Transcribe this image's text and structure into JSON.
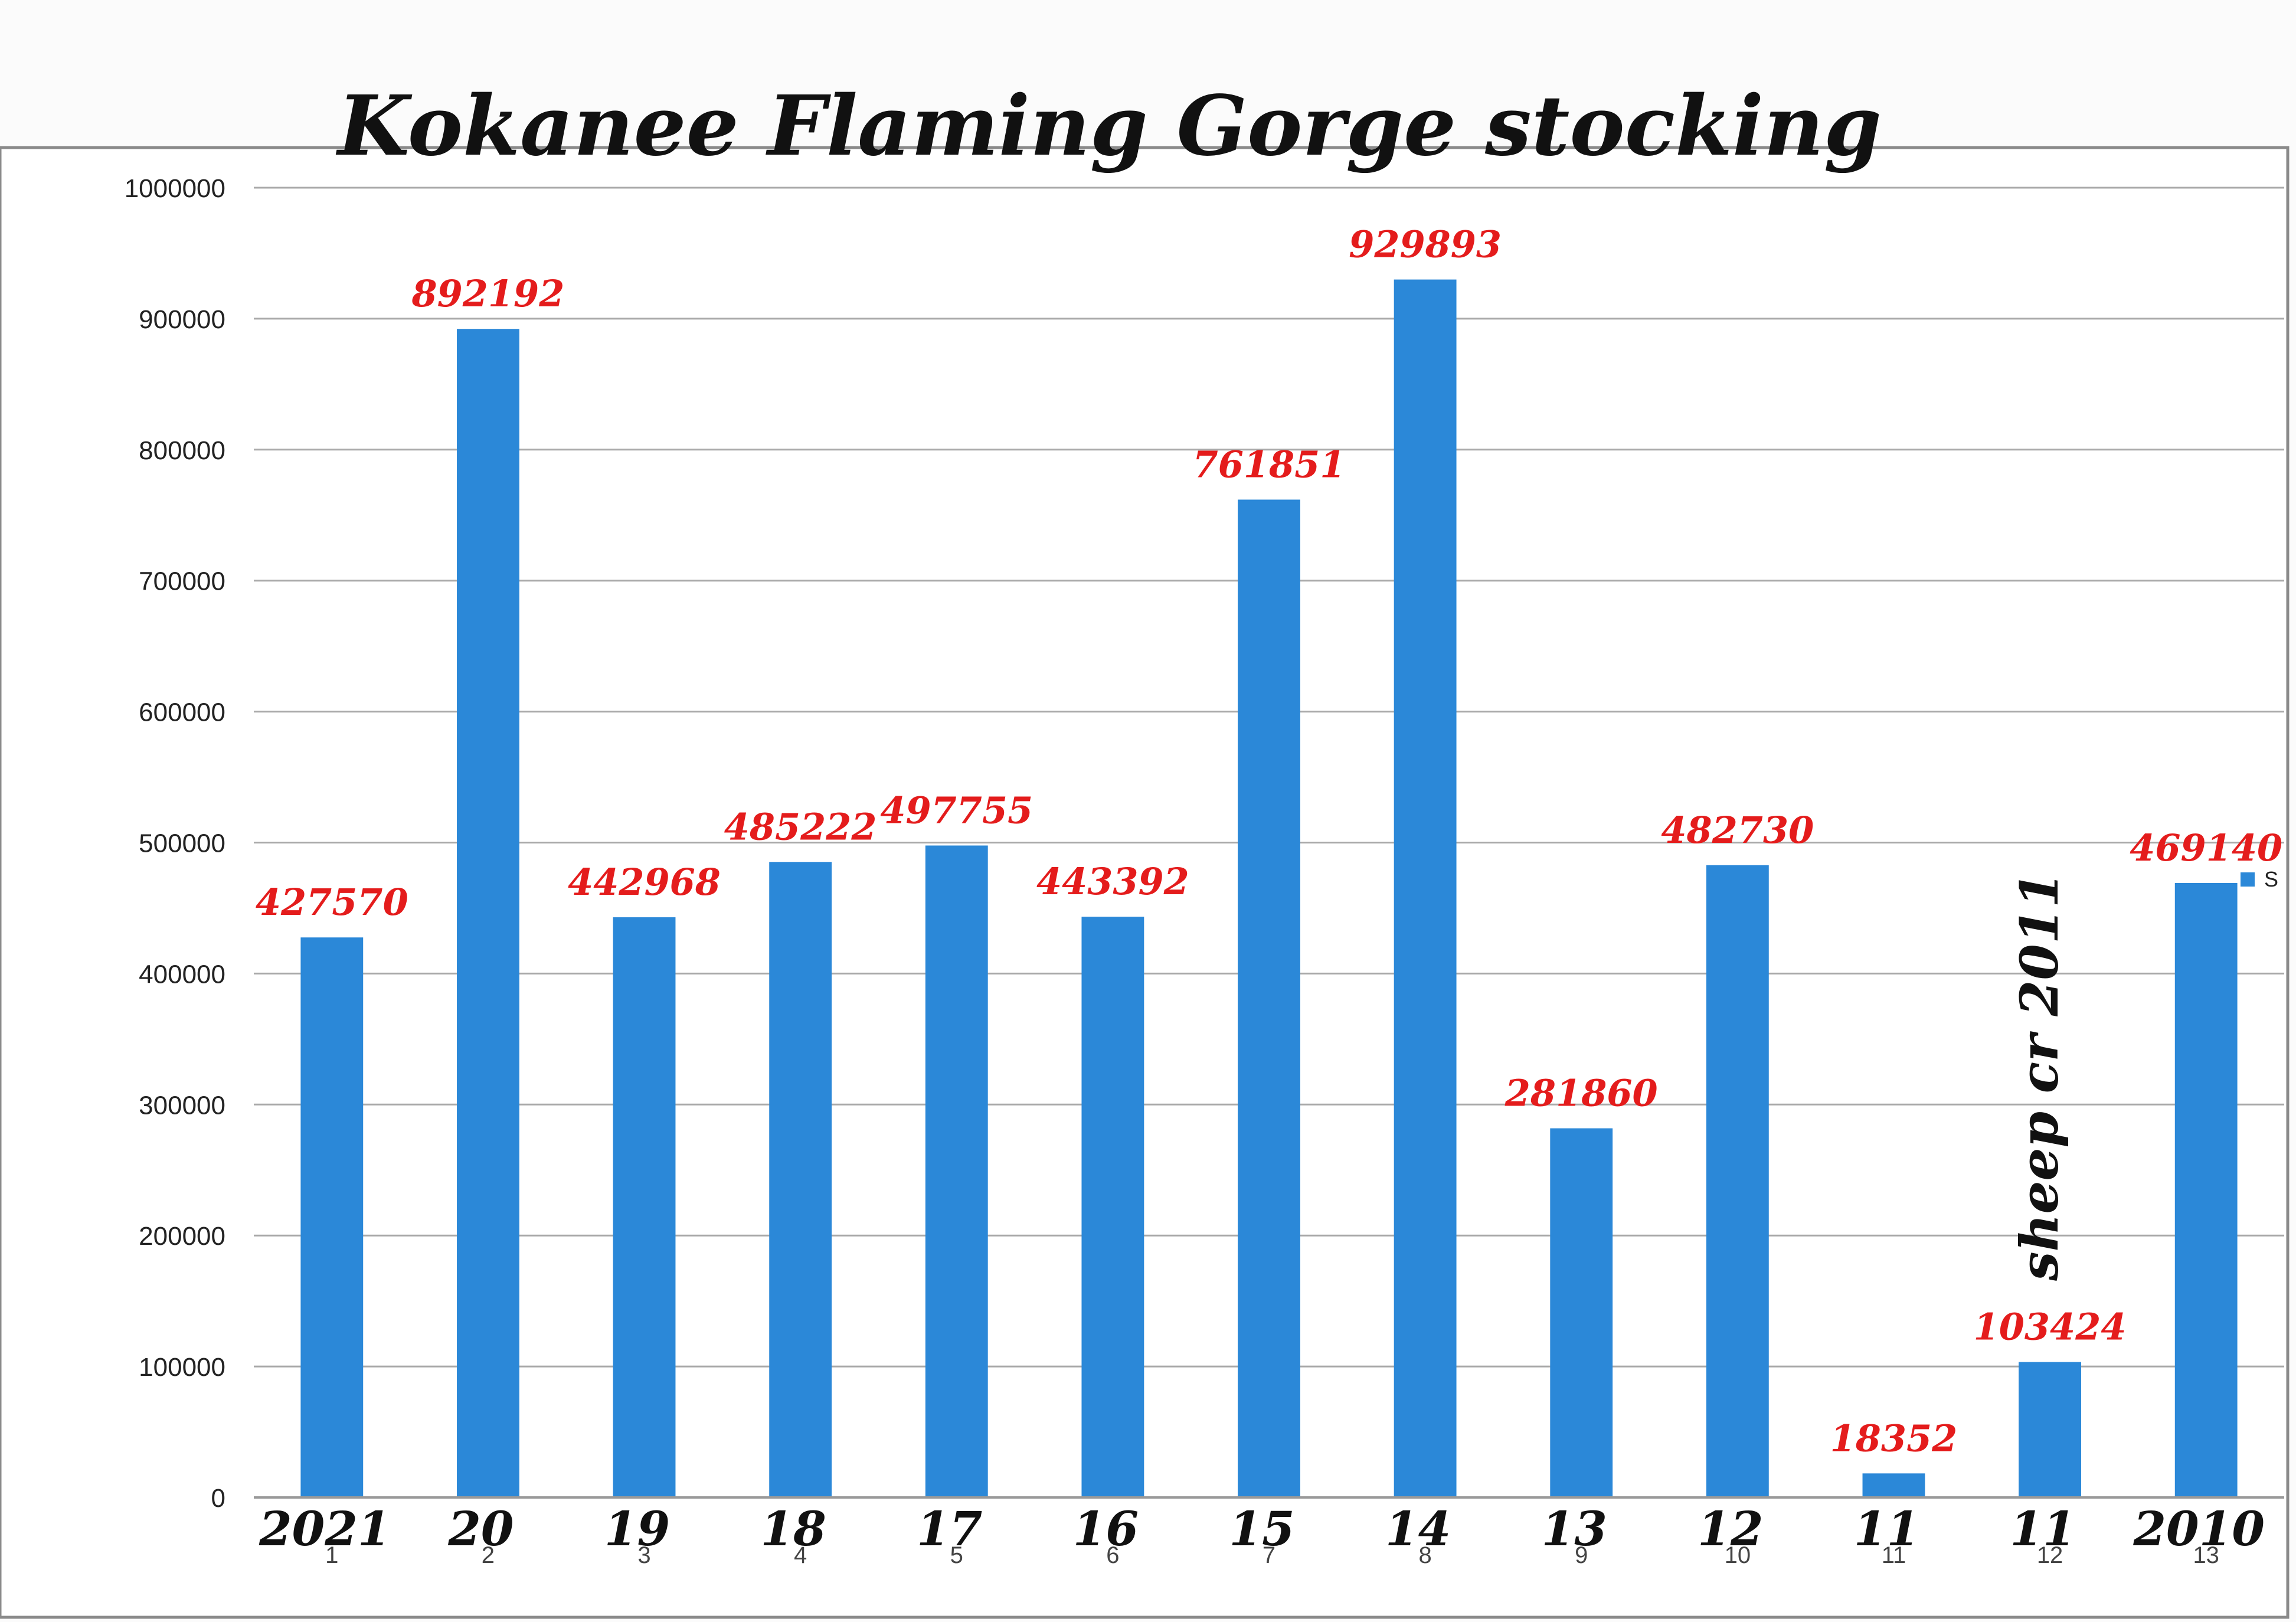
{
  "chart_data": {
    "type": "bar",
    "title": "Kokanee Flaming Gorge stocking",
    "categories": [
      "1",
      "2",
      "3",
      "4",
      "5",
      "6",
      "7",
      "8",
      "9",
      "10",
      "11",
      "12",
      "13"
    ],
    "values": [
      427570,
      892192,
      442968,
      485222,
      497755,
      443392,
      761851,
      929893,
      281860,
      482730,
      18352,
      103424,
      469140
    ],
    "data_labels": [
      "427570",
      "892192",
      "442968",
      "485222",
      "497755",
      "443392",
      "761851",
      "929893",
      "281860",
      "482730",
      "18352",
      "103424",
      "469140"
    ],
    "handwritten_year_labels": [
      "2021",
      "20",
      "19",
      "18",
      "17",
      "16",
      "15",
      "14",
      "13",
      "12",
      "11",
      "11",
      "2010"
    ],
    "annotation": "sheep cr 2011",
    "ylim": [
      0,
      1000000
    ],
    "yticks": [
      "0",
      "100000",
      "200000",
      "300000",
      "400000",
      "500000",
      "600000",
      "700000",
      "800000",
      "900000",
      "1000000"
    ],
    "grid": true,
    "legend": {
      "placement": "right",
      "label": "S"
    },
    "series_color": "#2b88d8",
    "label_color": "#e41c1c",
    "xlabel": "",
    "ylabel": ""
  }
}
